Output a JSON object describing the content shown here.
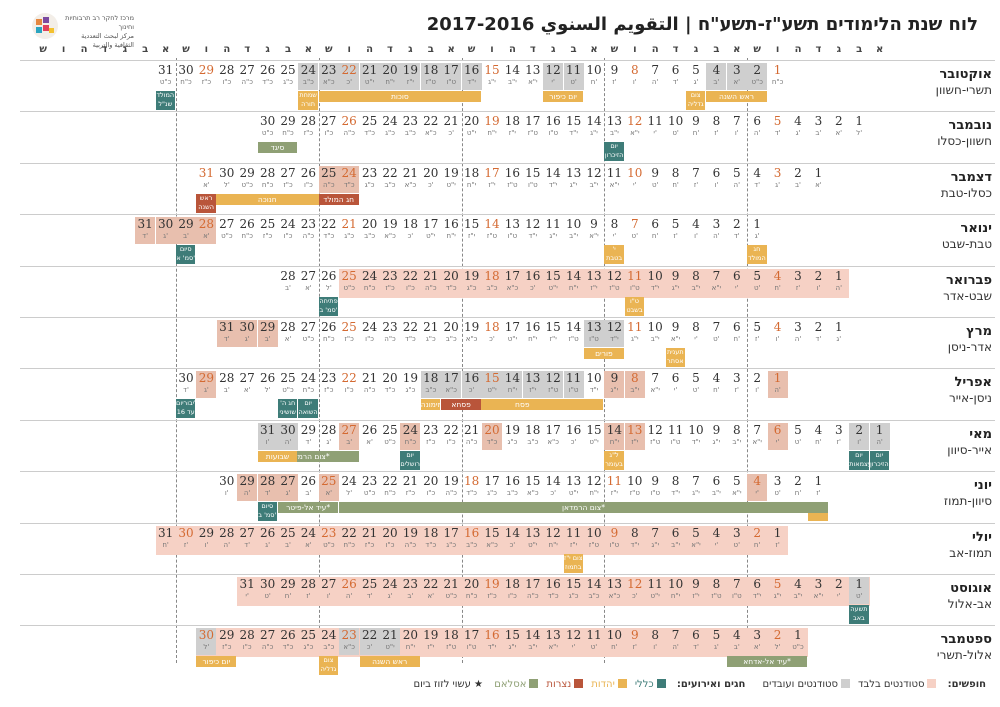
{
  "title": "לוח שנת הלימודים תשע\"ז-תשע\"ח | التقويم السنوي 2016-2017",
  "org_name": "מרכז לחקר רב תרבותיות וחינוך",
  "org_sub": "مركز لبحث التعددية الثقافية والتربية",
  "day_letters": [
    "א",
    "ב",
    "ג",
    "ד",
    "ה",
    "ו",
    "ש",
    "א",
    "ב",
    "ג",
    "ד",
    "ה",
    "ו",
    "ש",
    "א",
    "ב",
    "ג",
    "ד",
    "ה",
    "ו",
    "ש",
    "א",
    "ב",
    "ג",
    "ד",
    "ה",
    "ו",
    "ש",
    "א",
    "ב",
    "ג",
    "ד",
    "ה",
    "ו",
    "ש",
    "א",
    "ב",
    "ג",
    "ד",
    "ה",
    "ו",
    "ש"
  ],
  "months": [
    {
      "name": "אוקטובר",
      "heb": "תשרי-חשוון",
      "start": 6,
      "days": 31,
      "hebd": [
        "כ\"ח",
        "כ\"ט",
        "א'",
        "ב'",
        "ג'",
        "ד'",
        "ה'",
        "ו'",
        "ז'",
        "ח'",
        "ט'",
        "י'",
        "י\"א",
        "י\"ב",
        "י\"ג",
        "י\"ד",
        "ט\"ו",
        "ט\"ז",
        "י\"ז",
        "י\"ח",
        "י\"ט",
        "כ'",
        "כ\"א",
        "כ\"ב",
        "כ\"ג",
        "כ\"ד",
        "כ\"ה",
        "כ\"ו",
        "כ\"ז",
        "כ\"ח",
        "כ\"ט"
      ],
      "gray": [
        2,
        3,
        4,
        11,
        12,
        16,
        17,
        18,
        19,
        20,
        21,
        22,
        23,
        24
      ],
      "hol": [],
      "orange": [
        1,
        8,
        15,
        22,
        29
      ],
      "band": false,
      "ev": [
        {
          "t": "ראש השנה",
          "c": "y",
          "from": 2,
          "to": 4
        },
        {
          "t": "צום גדליה",
          "c": "y",
          "from": 5,
          "to": 5,
          "sm": 1
        },
        {
          "t": "יום כיפור",
          "c": "y",
          "from": 11,
          "to": 12
        },
        {
          "t": "סוכות",
          "c": "y",
          "from": 16,
          "to": 23
        },
        {
          "t": "שמחת תורה",
          "c": "y",
          "from": 24,
          "to": 24,
          "sm": 1
        },
        {
          "t": "המולד שנ\"ל",
          "c": "t",
          "from": 31,
          "to": 31,
          "sm": 1
        }
      ]
    },
    {
      "name": "נובמבר",
      "heb": "חשוון-כסלו",
      "start": 2,
      "days": 30,
      "hebd": [
        "ל'",
        "א'",
        "ב'",
        "ג'",
        "ד'",
        "ה'",
        "ו'",
        "ז'",
        "ח'",
        "ט'",
        "י'",
        "י\"א",
        "י\"ב",
        "י\"ג",
        "י\"ד",
        "ט\"ו",
        "ט\"ז",
        "י\"ז",
        "י\"ח",
        "י\"ט",
        "כ'",
        "כ\"א",
        "כ\"ב",
        "כ\"ג",
        "כ\"ד",
        "כ\"ה",
        "כ\"ו",
        "כ\"ז",
        "כ\"ח",
        "כ\"ט"
      ],
      "gray": [],
      "hol": [],
      "orange": [
        5,
        12,
        19,
        26
      ],
      "band": false,
      "ev": [
        {
          "t": "יום הזיכרון לרבין",
          "c": "t",
          "from": 13,
          "to": 13,
          "sm": 1
        },
        {
          "t": "סיגד",
          "c": "g",
          "from": 29,
          "to": 30
        }
      ]
    },
    {
      "name": "דצמבר",
      "heb": "כסלו-טבת",
      "start": 4,
      "days": 31,
      "hebd": [
        "א'",
        "ב'",
        "ג'",
        "ד'",
        "ה'",
        "ו'",
        "ז'",
        "ח'",
        "ט'",
        "י'",
        "י\"א",
        "י\"ב",
        "י\"ג",
        "י\"ד",
        "ט\"ו",
        "ט\"ז",
        "י\"ז",
        "י\"ח",
        "י\"ט",
        "כ'",
        "כ\"א",
        "כ\"ב",
        "כ\"ג",
        "כ\"ד",
        "כ\"ה",
        "כ\"ו",
        "כ\"ז",
        "כ\"ח",
        "כ\"ט",
        "ל'",
        "א'"
      ],
      "gray": [],
      "hol": [
        24,
        25
      ],
      "orange": [
        3,
        10,
        17,
        24,
        31
      ],
      "band": false,
      "ev": [
        {
          "t": "חנוכה",
          "c": "y",
          "from": 25,
          "to": 31
        },
        {
          "t": "חג המולד",
          "c": "r",
          "from": 24,
          "to": 25
        },
        {
          "t": "ראש השנה",
          "c": "r",
          "from": 31,
          "to": 31,
          "sm": 1
        }
      ]
    },
    {
      "name": "ינואר",
      "heb": "טבת-שבט",
      "start": 7,
      "days": 31,
      "hebd": [
        "ג'",
        "ד'",
        "ה'",
        "ו'",
        "ז'",
        "ח'",
        "ט'",
        "י'",
        "י\"א",
        "י\"ב",
        "י\"ג",
        "י\"ד",
        "ט\"ו",
        "ט\"ז",
        "י\"ז",
        "י\"ח",
        "י\"ט",
        "כ'",
        "כ\"א",
        "כ\"ב",
        "כ\"ג",
        "כ\"ד",
        "כ\"ה",
        "כ\"ו",
        "כ\"ז",
        "כ\"ח",
        "כ\"ט",
        "א'",
        "ב'",
        "ג'",
        "ד'"
      ],
      "gray": [],
      "hol": [
        28,
        29,
        30,
        31
      ],
      "orange": [
        7,
        14,
        21,
        28
      ],
      "band": false,
      "ev": [
        {
          "t": "חג המולד ראש השנה",
          "c": "y",
          "from": 1,
          "to": 1,
          "sm": 1
        },
        {
          "t": "י' בטבת",
          "c": "y",
          "from": 8,
          "to": 8,
          "sm": 1
        },
        {
          "t": "סיום סמ' א'",
          "c": "t",
          "from": 29,
          "to": 29,
          "sm": 1
        }
      ]
    },
    {
      "name": "פברואר",
      "heb": "שבט-אדר",
      "start": 3,
      "days": 28,
      "hebd": [
        "ה'",
        "ו'",
        "ז'",
        "ח'",
        "ט'",
        "י'",
        "י\"א",
        "י\"ב",
        "י\"ג",
        "י\"ד",
        "ט\"ו",
        "ט\"ז",
        "י\"ז",
        "י\"ח",
        "י\"ט",
        "כ'",
        "כ\"א",
        "כ\"ב",
        "כ\"ג",
        "כ\"ד",
        "כ\"ה",
        "כ\"ו",
        "כ\"ז",
        "כ\"ח",
        "כ\"ט",
        "ל'",
        "א'",
        "ב'"
      ],
      "gray": [],
      "hol": [],
      "orange": [
        4,
        11,
        18,
        25
      ],
      "band": true,
      "bandTo": 25,
      "ev": [
        {
          "t": "ט\"ו בשבט",
          "c": "y",
          "from": 11,
          "to": 11,
          "sm": 1
        },
        {
          "t": "פתיחה סמ' ב'",
          "c": "t",
          "from": 26,
          "to": 26,
          "sm": 1
        }
      ]
    },
    {
      "name": "מרץ",
      "heb": "אדר-ניסן",
      "start": 3,
      "days": 31,
      "hebd": [
        "ג'",
        "ד'",
        "ה'",
        "ו'",
        "ז'",
        "ח'",
        "ט'",
        "י'",
        "י\"א",
        "י\"ב",
        "י\"ג",
        "י\"ד",
        "ט\"ו",
        "ט\"ז",
        "י\"ז",
        "י\"ח",
        "י\"ט",
        "כ'",
        "כ\"א",
        "כ\"ב",
        "כ\"ג",
        "כ\"ד",
        "כ\"ה",
        "כ\"ו",
        "כ\"ז",
        "כ\"ח",
        "כ\"ט",
        "א'",
        "ב'",
        "ג'",
        "ד'"
      ],
      "gray": [
        12,
        13
      ],
      "hol": [
        29,
        30,
        31
      ],
      "orange": [
        4,
        11,
        18,
        25
      ],
      "band": false,
      "ev": [
        {
          "t": "תענית אסתר",
          "c": "y",
          "from": 9,
          "to": 9,
          "sm": 1
        },
        {
          "t": "פורים",
          "c": "y",
          "from": 12,
          "to": 13
        }
      ]
    },
    {
      "name": "אפריל",
      "heb": "ניסן-אייר",
      "start": 6,
      "days": 30,
      "hebd": [
        "ה'",
        "ו'",
        "ז'",
        "ח'",
        "ט'",
        "י'",
        "י\"א",
        "י\"ב",
        "י\"ג",
        "י\"ד",
        "ט\"ו",
        "ט\"ז",
        "י\"ז",
        "י\"ח",
        "י\"ט",
        "כ'",
        "כ\"א",
        "כ\"ב",
        "כ\"ג",
        "כ\"ד",
        "כ\"ה",
        "כ\"ו",
        "כ\"ז",
        "כ\"ח",
        "כ\"ט",
        "ל'",
        "א'",
        "ב'",
        "ג'",
        "ד'"
      ],
      "gray": [
        11,
        12,
        13,
        14,
        15,
        16,
        17,
        18
      ],
      "hol": [
        1,
        8,
        9,
        15,
        29
      ],
      "orange": [
        1,
        8,
        15,
        22,
        29
      ],
      "band": false,
      "ev": [
        {
          "t": "פסח",
          "c": "y",
          "from": 10,
          "to": 17
        },
        {
          "t": "פסחא",
          "c": "r",
          "from": 16,
          "to": 17
        },
        {
          "t": "מימונה",
          "c": "y",
          "from": 18,
          "to": 18
        },
        {
          "t": "יום השואה",
          "c": "t",
          "from": 24,
          "to": 24,
          "sm": 1
        },
        {
          "t": "חג ה' שושיני",
          "c": "t",
          "from": 25,
          "to": 25,
          "sm": 1
        },
        {
          "t": "ליבוריום עד 16",
          "c": "t",
          "from": 30,
          "to": 30,
          "sm": 1
        }
      ]
    },
    {
      "name": "מאי",
      "heb": "אייר-סיוון",
      "start": 1,
      "days": 31,
      "hebd": [
        "ה'",
        "ו'",
        "ז'",
        "ח'",
        "ט'",
        "י'",
        "י\"א",
        "י\"ב",
        "י\"ג",
        "י\"ד",
        "ט\"ו",
        "ט\"ז",
        "י\"ז",
        "י\"ח",
        "י\"ט",
        "כ'",
        "כ\"א",
        "כ\"ב",
        "כ\"ג",
        "כ\"ד",
        "כ\"ה",
        "כ\"ו",
        "כ\"ז",
        "כ\"ח",
        "כ\"ט",
        "א'",
        "ב'",
        "ג'",
        "ד'",
        "ה'",
        "ו'"
      ],
      "gray": [
        1,
        2,
        30,
        31
      ],
      "hol": [
        6,
        13,
        14,
        20,
        24,
        27
      ],
      "orange": [
        6,
        13,
        20,
        27
      ],
      "band": false,
      "ev": [
        {
          "t": "יום הזיכרון",
          "c": "t",
          "from": 1,
          "to": 1,
          "sm": 1
        },
        {
          "t": "יום העצמאות",
          "c": "t",
          "from": 2,
          "to": 2,
          "sm": 1
        },
        {
          "t": "ל\"ג בעומר",
          "c": "y",
          "from": 14,
          "to": 14,
          "sm": 1
        },
        {
          "t": "יום ירושלים",
          "c": "t",
          "from": 24,
          "to": 24,
          "sm": 1
        },
        {
          "t": "צום הרמדאן*",
          "c": "g",
          "from": 27,
          "to": 31
        },
        {
          "t": "שבועות",
          "c": "y",
          "from": 30,
          "to": 31
        }
      ]
    },
    {
      "name": "יוני",
      "heb": "סיוון-תמוז",
      "start": 4,
      "days": 30,
      "hebd": [
        "ז'",
        "ח'",
        "ט'",
        "י'",
        "י\"א",
        "י\"ב",
        "י\"ג",
        "י\"ד",
        "ט\"ו",
        "ט\"ז",
        "י\"ז",
        "י\"ח",
        "י\"ט",
        "כ'",
        "כ\"א",
        "כ\"ב",
        "כ\"ג",
        "כ\"ד",
        "כ\"ה",
        "כ\"ו",
        "כ\"ז",
        "כ\"ח",
        "כ\"ט",
        "ל'",
        "א'",
        "ב'",
        "ג'",
        "ד'",
        "ה'",
        "ו'"
      ],
      "gray": [],
      "hol": [
        4,
        25,
        27,
        28,
        29
      ],
      "orange": [
        4,
        11,
        18,
        25
      ],
      "band": false,
      "ev": [
        {
          "t": "אסרא-מע'",
          "c": "y",
          "from": 1,
          "to": 1,
          "sm": 1
        },
        {
          "t": "צום הרמדאן*",
          "c": "g",
          "from": 1,
          "to": 24
        },
        {
          "t": "עיד אל-פיטר*",
          "c": "g",
          "from": 25,
          "to": 27
        },
        {
          "t": "סיום סמ' ב'",
          "c": "t",
          "from": 28,
          "to": 28,
          "sm": 1
        }
      ]
    },
    {
      "name": "יולי",
      "heb": "תמוז-אב",
      "start": 6,
      "days": 31,
      "hebd": [
        "ז'",
        "ח'",
        "ט'",
        "י'",
        "י\"א",
        "י\"ב",
        "י\"ג",
        "י\"ד",
        "ט\"ו",
        "ט\"ז",
        "י\"ז",
        "י\"ח",
        "י\"ט",
        "כ'",
        "כ\"א",
        "כ\"ב",
        "כ\"ג",
        "כ\"ד",
        "כ\"ה",
        "כ\"ו",
        "כ\"ז",
        "כ\"ח",
        "כ\"ט",
        "א'",
        "ב'",
        "ג'",
        "ד'",
        "ה'",
        "ו'",
        "ז'",
        "ח'"
      ],
      "gray": [],
      "hol": [],
      "orange": [
        2,
        9,
        16,
        23,
        30
      ],
      "band": true,
      "bandTo": 31,
      "ev": [
        {
          "t": "צום י\"ז בתמוז",
          "c": "y",
          "from": 11,
          "to": 11,
          "sm": 1
        }
      ]
    },
    {
      "name": "אוגוסט",
      "heb": "אב-אלול",
      "start": 2,
      "days": 31,
      "hebd": [
        "ט'",
        "י'",
        "י\"א",
        "י\"ב",
        "י\"ג",
        "י\"ד",
        "ט\"ו",
        "ט\"ז",
        "י\"ז",
        "י\"ח",
        "י\"ט",
        "כ'",
        "כ\"א",
        "כ\"ב",
        "כ\"ג",
        "כ\"ד",
        "כ\"ה",
        "כ\"ו",
        "כ\"ז",
        "כ\"ח",
        "כ\"ט",
        "א'",
        "ב'",
        "ג'",
        "ד'",
        "ה'",
        "ו'",
        "ז'",
        "ח'",
        "ט'",
        "י'"
      ],
      "gray": [
        1
      ],
      "hol": [],
      "orange": [
        5,
        12,
        19,
        26
      ],
      "band": true,
      "bandTo": 31,
      "ev": [
        {
          "t": "תשעה באב",
          "c": "t",
          "from": 1,
          "to": 1,
          "sm": 1
        }
      ]
    },
    {
      "name": "ספטמבר",
      "heb": "אלול-תשרי",
      "start": 5,
      "days": 30,
      "hebd": [
        "כ\"ט",
        "ל'",
        "א'",
        "ב'",
        "ג'",
        "ד'",
        "ה'",
        "ו'",
        "ז'",
        "ח'",
        "ט'",
        "י'",
        "י\"א",
        "י\"ב",
        "י\"ג",
        "י\"ד",
        "ט\"ו",
        "ט\"ז",
        "י\"ז",
        "י\"ח",
        "י\"ט",
        "כ'",
        "כ\"א",
        "כ\"ב",
        "כ\"ג",
        "כ\"ד",
        "כ\"ה",
        "כ\"ו",
        "כ\"ז",
        "ל'"
      ],
      "gray": [
        21,
        22,
        23,
        30
      ],
      "hol": [],
      "orange": [
        2,
        9,
        16,
        23,
        30
      ],
      "band": true,
      "bandTo": 30,
      "ev": [
        {
          "t": "עיד אל-אדחא*",
          "c": "g",
          "from": 1,
          "to": 4
        },
        {
          "t": "ראש השנה",
          "c": "y",
          "from": 20,
          "to": 22
        },
        {
          "t": "צום גדליה",
          "c": "y",
          "from": 24,
          "to": 24,
          "sm": 1
        },
        {
          "t": "יום כיפור",
          "c": "y",
          "from": 29,
          "to": 30
        }
      ]
    }
  ],
  "legend": {
    "label": "חופשים:",
    "items": [
      {
        "t": "סטודנטים בלבד",
        "c": "#f6d1c5"
      },
      {
        "t": "סטודנטים ועובדים",
        "c": "#cfcfcf"
      }
    ],
    "label2": "חגים ואירועים:",
    "items2": [
      {
        "t": "כללי",
        "c": "#3e7c78"
      },
      {
        "t": "יהדות",
        "c": "#eab453"
      },
      {
        "t": "נצרות",
        "c": "#b9553a"
      },
      {
        "t": "אסלאם",
        "c": "#8fa075"
      }
    ],
    "note": "★ עשוי לזוז ביום"
  }
}
